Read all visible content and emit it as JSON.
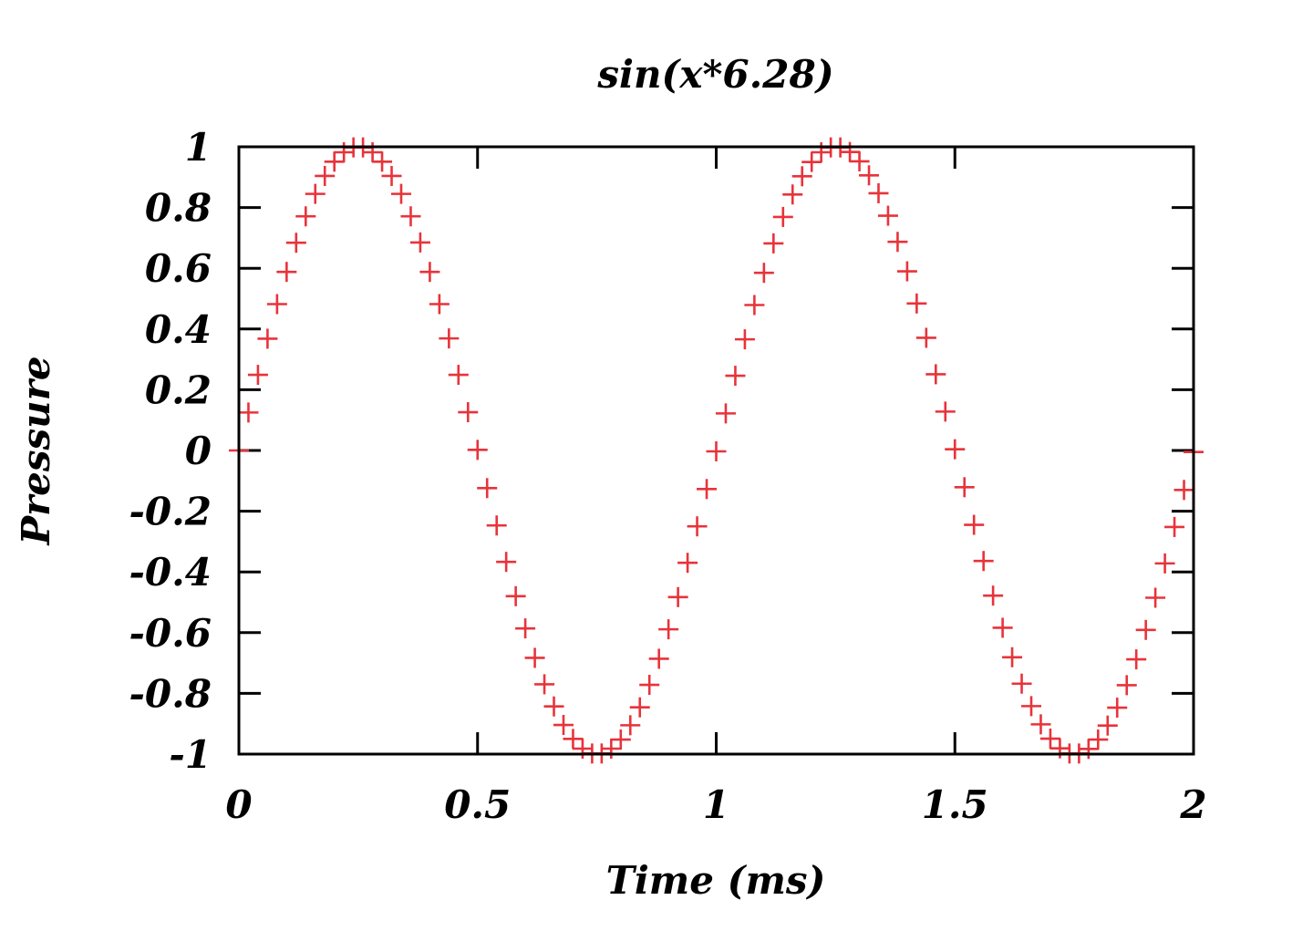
{
  "chart_data": {
    "type": "scatter",
    "title": "sin(x*6.28)",
    "xlabel": "Time (ms)",
    "ylabel": "Pressure",
    "xlim": [
      0,
      2
    ],
    "ylim": [
      -1,
      1
    ],
    "xticks": [
      0,
      0.5,
      1,
      1.5,
      2
    ],
    "xtick_labels": [
      "0",
      "0.5",
      "1",
      "1.5",
      "2"
    ],
    "yticks": [
      1,
      0.8,
      0.6,
      0.4,
      0.2,
      0,
      -0.2,
      -0.4,
      -0.6,
      -0.8,
      -1
    ],
    "ytick_labels": [
      "1",
      "0.8",
      "0.6",
      "0.4",
      "0.2",
      "0",
      "-0.2",
      "-0.4",
      "-0.6",
      "-0.8",
      "-1"
    ],
    "grid": false,
    "legend": "none",
    "marker": "plus",
    "color": "#e8333a",
    "series": [
      {
        "x": [
          0,
          0.02,
          0.04,
          0.06,
          0.08,
          0.1,
          0.12,
          0.14,
          0.16,
          0.18,
          0.2,
          0.22,
          0.24,
          0.26,
          0.28,
          0.3,
          0.32,
          0.34,
          0.36,
          0.38,
          0.4,
          0.42,
          0.44,
          0.46,
          0.48,
          0.5,
          0.52,
          0.54,
          0.56,
          0.58,
          0.6,
          0.62,
          0.64,
          0.66,
          0.68,
          0.7,
          0.72,
          0.74,
          0.76,
          0.78,
          0.8,
          0.82,
          0.84,
          0.86,
          0.88,
          0.9,
          0.92,
          0.94,
          0.96,
          0.98,
          1,
          1.02,
          1.04,
          1.06,
          1.08,
          1.1,
          1.12,
          1.14,
          1.16,
          1.18,
          1.2,
          1.22,
          1.24,
          1.26,
          1.28,
          1.3,
          1.32,
          1.34,
          1.36,
          1.38,
          1.4,
          1.42,
          1.44,
          1.46,
          1.48,
          1.5,
          1.52,
          1.54,
          1.56,
          1.58,
          1.6,
          1.62,
          1.64,
          1.66,
          1.68,
          1.7,
          1.72,
          1.74,
          1.76,
          1.78,
          1.8,
          1.82,
          1.84,
          1.86,
          1.88,
          1.9,
          1.92,
          1.94,
          1.96,
          1.98,
          2
        ],
        "y": [
          0,
          0.125,
          0.249,
          0.368,
          0.482,
          0.588,
          0.684,
          0.771,
          0.845,
          0.904,
          0.951,
          0.982,
          0.998,
          0.998,
          0.982,
          0.951,
          0.904,
          0.845,
          0.771,
          0.685,
          0.588,
          0.482,
          0.369,
          0.249,
          0.126,
          0.002,
          -0.124,
          -0.247,
          -0.367,
          -0.48,
          -0.586,
          -0.683,
          -0.77,
          -0.843,
          -0.904,
          -0.95,
          -0.982,
          -0.998,
          -0.998,
          -0.982,
          -0.952,
          -0.905,
          -0.846,
          -0.772,
          -0.686,
          -0.589,
          -0.483,
          -0.37,
          -0.25,
          -0.127,
          -0.003,
          0.122,
          0.246,
          0.366,
          0.479,
          0.585,
          0.682,
          0.769,
          0.843,
          0.903,
          0.95,
          0.982,
          0.998,
          0.998,
          0.983,
          0.952,
          0.906,
          0.847,
          0.773,
          0.687,
          0.59,
          0.484,
          0.371,
          0.251,
          0.128,
          0.004,
          -0.121,
          -0.245,
          -0.364,
          -0.478,
          -0.584,
          -0.681,
          -0.768,
          -0.842,
          -0.902,
          -0.949,
          -0.981,
          -0.998,
          -0.998,
          -0.983,
          -0.952,
          -0.906,
          -0.847,
          -0.773,
          -0.688,
          -0.591,
          -0.485,
          -0.372,
          -0.252,
          -0.13,
          -0.005
        ]
      }
    ]
  }
}
